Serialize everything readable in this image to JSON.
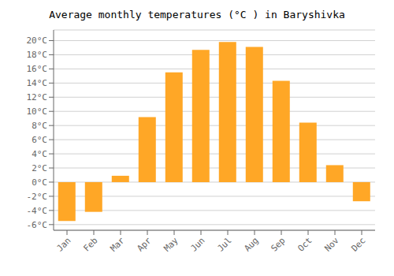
{
  "chart_data": {
    "type": "bar",
    "title": "Average monthly temperatures (°C ) in Baryshivka",
    "categories": [
      "Jan",
      "Feb",
      "Mar",
      "Apr",
      "May",
      "Jun",
      "Jul",
      "Aug",
      "Sep",
      "Oct",
      "Nov",
      "Dec"
    ],
    "values": [
      -5.5,
      -4.2,
      0.9,
      9.2,
      15.5,
      18.7,
      19.8,
      19.1,
      14.3,
      8.4,
      2.4,
      -2.7
    ],
    "color": "#FFA726",
    "ylim": [
      -6.8,
      21.5
    ],
    "yticks": [
      {
        "value": -6,
        "label": "-6°C"
      },
      {
        "value": -4,
        "label": "-4°C"
      },
      {
        "value": -2,
        "label": "-2°C"
      },
      {
        "value": 0,
        "label": "0°C"
      },
      {
        "value": 2,
        "label": "2°C"
      },
      {
        "value": 4,
        "label": "4°C"
      },
      {
        "value": 6,
        "label": "6°C"
      },
      {
        "value": 8,
        "label": "8°C"
      },
      {
        "value": 10,
        "label": "10°C"
      },
      {
        "value": 12,
        "label": "12°C"
      },
      {
        "value": 14,
        "label": "14°C"
      },
      {
        "value": 16,
        "label": "16°C"
      },
      {
        "value": 18,
        "label": "18°C"
      },
      {
        "value": 20,
        "label": "20°C"
      }
    ],
    "grid": true
  }
}
